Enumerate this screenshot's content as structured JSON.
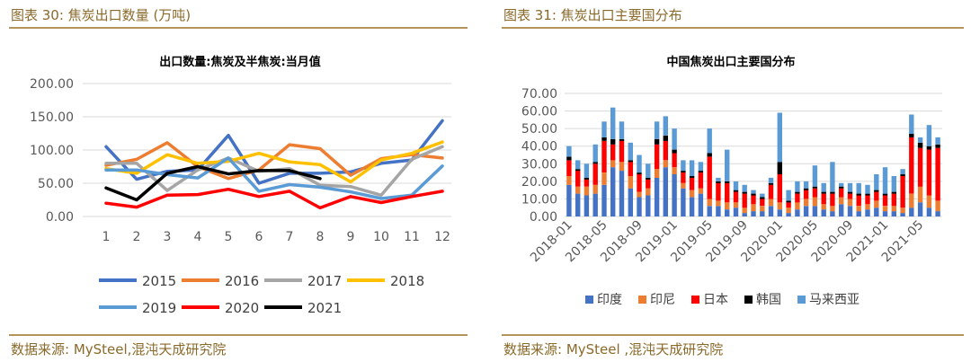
{
  "header": {
    "left_title": "图表 30: 焦炭出口数量 (万吨)",
    "right_title": "图表 31: 焦炭出口主要国分布"
  },
  "footer": {
    "left_source": "数据来源: MySteel,混沌天成研究院",
    "right_source": "数据来源: MySteel ,混沌天成研究院"
  },
  "chart_data": [
    {
      "type": "line",
      "title": "出口数量:焦炭及半焦炭:当月值",
      "xlabel": "",
      "ylabel": "",
      "x": [
        1,
        2,
        3,
        4,
        5,
        6,
        7,
        8,
        9,
        10,
        11,
        12
      ],
      "ylim": [
        0,
        200
      ],
      "yticks": [
        "0.00",
        "50.00",
        "100.00",
        "150.00",
        "200.00"
      ],
      "grid": true,
      "legend": "bottom",
      "series": [
        {
          "name": "2015",
          "color": "#4472c4",
          "values": [
            105,
            56,
            68,
            70,
            122,
            50,
            65,
            65,
            67,
            80,
            85,
            144
          ]
        },
        {
          "name": "2016",
          "color": "#ed7d31",
          "values": [
            77,
            86,
            111,
            75,
            57,
            70,
            108,
            102,
            62,
            87,
            93,
            88
          ]
        },
        {
          "name": "2017",
          "color": "#a5a5a5",
          "values": [
            80,
            80,
            39,
            70,
            88,
            68,
            72,
            47,
            45,
            32,
            86,
            105
          ]
        },
        {
          "name": "2018",
          "color": "#ffc000",
          "values": [
            72,
            65,
            93,
            80,
            83,
            95,
            82,
            78,
            52,
            85,
            95,
            112
          ]
        },
        {
          "name": "2019",
          "color": "#5b9bd5",
          "values": [
            70,
            70,
            63,
            58,
            88,
            38,
            48,
            44,
            37,
            27,
            32,
            76
          ]
        },
        {
          "name": "2020",
          "color": "#ff0000",
          "values": [
            20,
            14,
            32,
            33,
            41,
            30,
            38,
            13,
            30,
            21,
            30,
            38
          ]
        },
        {
          "name": "2021",
          "color": "#000000",
          "values": [
            43,
            25,
            65,
            75,
            64,
            69,
            69,
            57,
            null,
            null,
            null,
            null
          ]
        }
      ]
    },
    {
      "type": "bar",
      "stacked": true,
      "title": "中国焦炭出口主要国分布",
      "xlabel": "",
      "ylabel": "",
      "ylim": [
        0,
        70
      ],
      "yticks": [
        "0.00",
        "10.00",
        "20.00",
        "30.00",
        "40.00",
        "50.00",
        "60.00",
        "70.00"
      ],
      "grid": true,
      "legend": "bottom",
      "categories": [
        "2018-01",
        "2018-02",
        "2018-03",
        "2018-04",
        "2018-05",
        "2018-06",
        "2018-07",
        "2018-08",
        "2018-09",
        "2018-10",
        "2018-11",
        "2018-12",
        "2019-01",
        "2019-02",
        "2019-03",
        "2019-04",
        "2019-05",
        "2019-06",
        "2019-07",
        "2019-08",
        "2019-09",
        "2019-10",
        "2019-11",
        "2019-12",
        "2020-01",
        "2020-02",
        "2020-03",
        "2020-04",
        "2020-05",
        "2020-06",
        "2020-07",
        "2020-08",
        "2020-09",
        "2020-10",
        "2020-11",
        "2020-12",
        "2021-01",
        "2021-02",
        "2021-03",
        "2021-04",
        "2021-05",
        "2021-06",
        "2021-07"
      ],
      "tick_labels": [
        "2018-01",
        "2018-05",
        "2018-09",
        "2019-01",
        "2019-05",
        "2019-09",
        "2020-01",
        "2020-05",
        "2020-09",
        "2021-01",
        "2021-05"
      ],
      "series": [
        {
          "name": "印度",
          "color": "#4472c4",
          "values": [
            18,
            13,
            12,
            13,
            18,
            28,
            26,
            16,
            11,
            12,
            22,
            28,
            24,
            16,
            11,
            13,
            6,
            6,
            4,
            5,
            2,
            3,
            3,
            6,
            4,
            2,
            4,
            6,
            6,
            4,
            3,
            7,
            6,
            3,
            4,
            5,
            3,
            3,
            2,
            5,
            8,
            5,
            3
          ]
        },
        {
          "name": "印尼",
          "color": "#ed7d31",
          "values": [
            5,
            4,
            5,
            5,
            7,
            4,
            5,
            7,
            3,
            4,
            5,
            4,
            4,
            3,
            4,
            3,
            4,
            3,
            4,
            3,
            3,
            4,
            3,
            4,
            4,
            3,
            4,
            4,
            5,
            3,
            3,
            4,
            4,
            3,
            3,
            4,
            3,
            3,
            3,
            8,
            9,
            7,
            6
          ]
        },
        {
          "name": "日本",
          "color": "#ff0000",
          "values": [
            9,
            9,
            4,
            12,
            18,
            9,
            12,
            8,
            10,
            5,
            14,
            11,
            8,
            6,
            7,
            9,
            24,
            10,
            11,
            6,
            8,
            5,
            4,
            8,
            16,
            3,
            5,
            5,
            5,
            6,
            7,
            5,
            3,
            6,
            5,
            5,
            6,
            7,
            18,
            32,
            22,
            26,
            30
          ]
        },
        {
          "name": "韩国",
          "color": "#000000",
          "values": [
            2,
            1,
            1,
            1,
            2,
            3,
            1,
            1,
            1,
            1,
            3,
            3,
            2,
            1,
            1,
            1,
            2,
            1,
            1,
            1,
            1,
            1,
            1,
            1,
            7,
            1,
            1,
            1,
            1,
            1,
            1,
            1,
            1,
            1,
            1,
            1,
            1,
            1,
            1,
            2,
            3,
            2,
            2
          ]
        },
        {
          "name": "马来西亚",
          "color": "#5b9bd5",
          "values": [
            6,
            5,
            8,
            10,
            9,
            18,
            10,
            10,
            10,
            8,
            10,
            11,
            12,
            6,
            9,
            5,
            14,
            2,
            18,
            5,
            4,
            2,
            2,
            3,
            28,
            6,
            6,
            4,
            12,
            5,
            17,
            2,
            5,
            6,
            5,
            9,
            15,
            9,
            3,
            11,
            3,
            12,
            4
          ]
        }
      ]
    }
  ]
}
